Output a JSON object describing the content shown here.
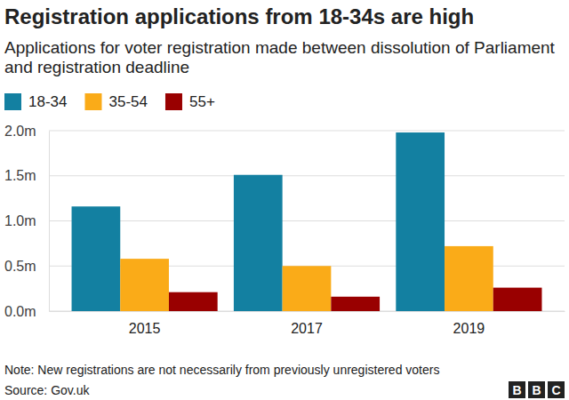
{
  "chart_data": {
    "type": "bar",
    "title": "Registration applications from 18-34s are high",
    "subtitle": "Applications for voter registration made between dissolution of Parliament and registration deadline",
    "categories": [
      "2015",
      "2017",
      "2019"
    ],
    "series": [
      {
        "name": "18-34",
        "color": "#1380a1",
        "values": [
          1.16,
          1.51,
          1.98
        ]
      },
      {
        "name": "35-54",
        "color": "#faab18",
        "values": [
          0.58,
          0.5,
          0.72
        ]
      },
      {
        "name": "55+",
        "color": "#990000",
        "values": [
          0.21,
          0.16,
          0.26
        ]
      }
    ],
    "ylim": [
      0,
      2
    ],
    "yticks": [
      {
        "value": 0,
        "label": "0.0m"
      },
      {
        "value": 0.5,
        "label": "0.5m"
      },
      {
        "value": 1,
        "label": "1.0m"
      },
      {
        "value": 1.5,
        "label": "1.5m"
      },
      {
        "value": 2,
        "label": "2.0m"
      }
    ],
    "grid": true,
    "legend": "top-left",
    "note": "Note: New registrations are not necessarily from previously unregistered voters",
    "source": "Source: Gov.uk",
    "logo": "BBC"
  }
}
